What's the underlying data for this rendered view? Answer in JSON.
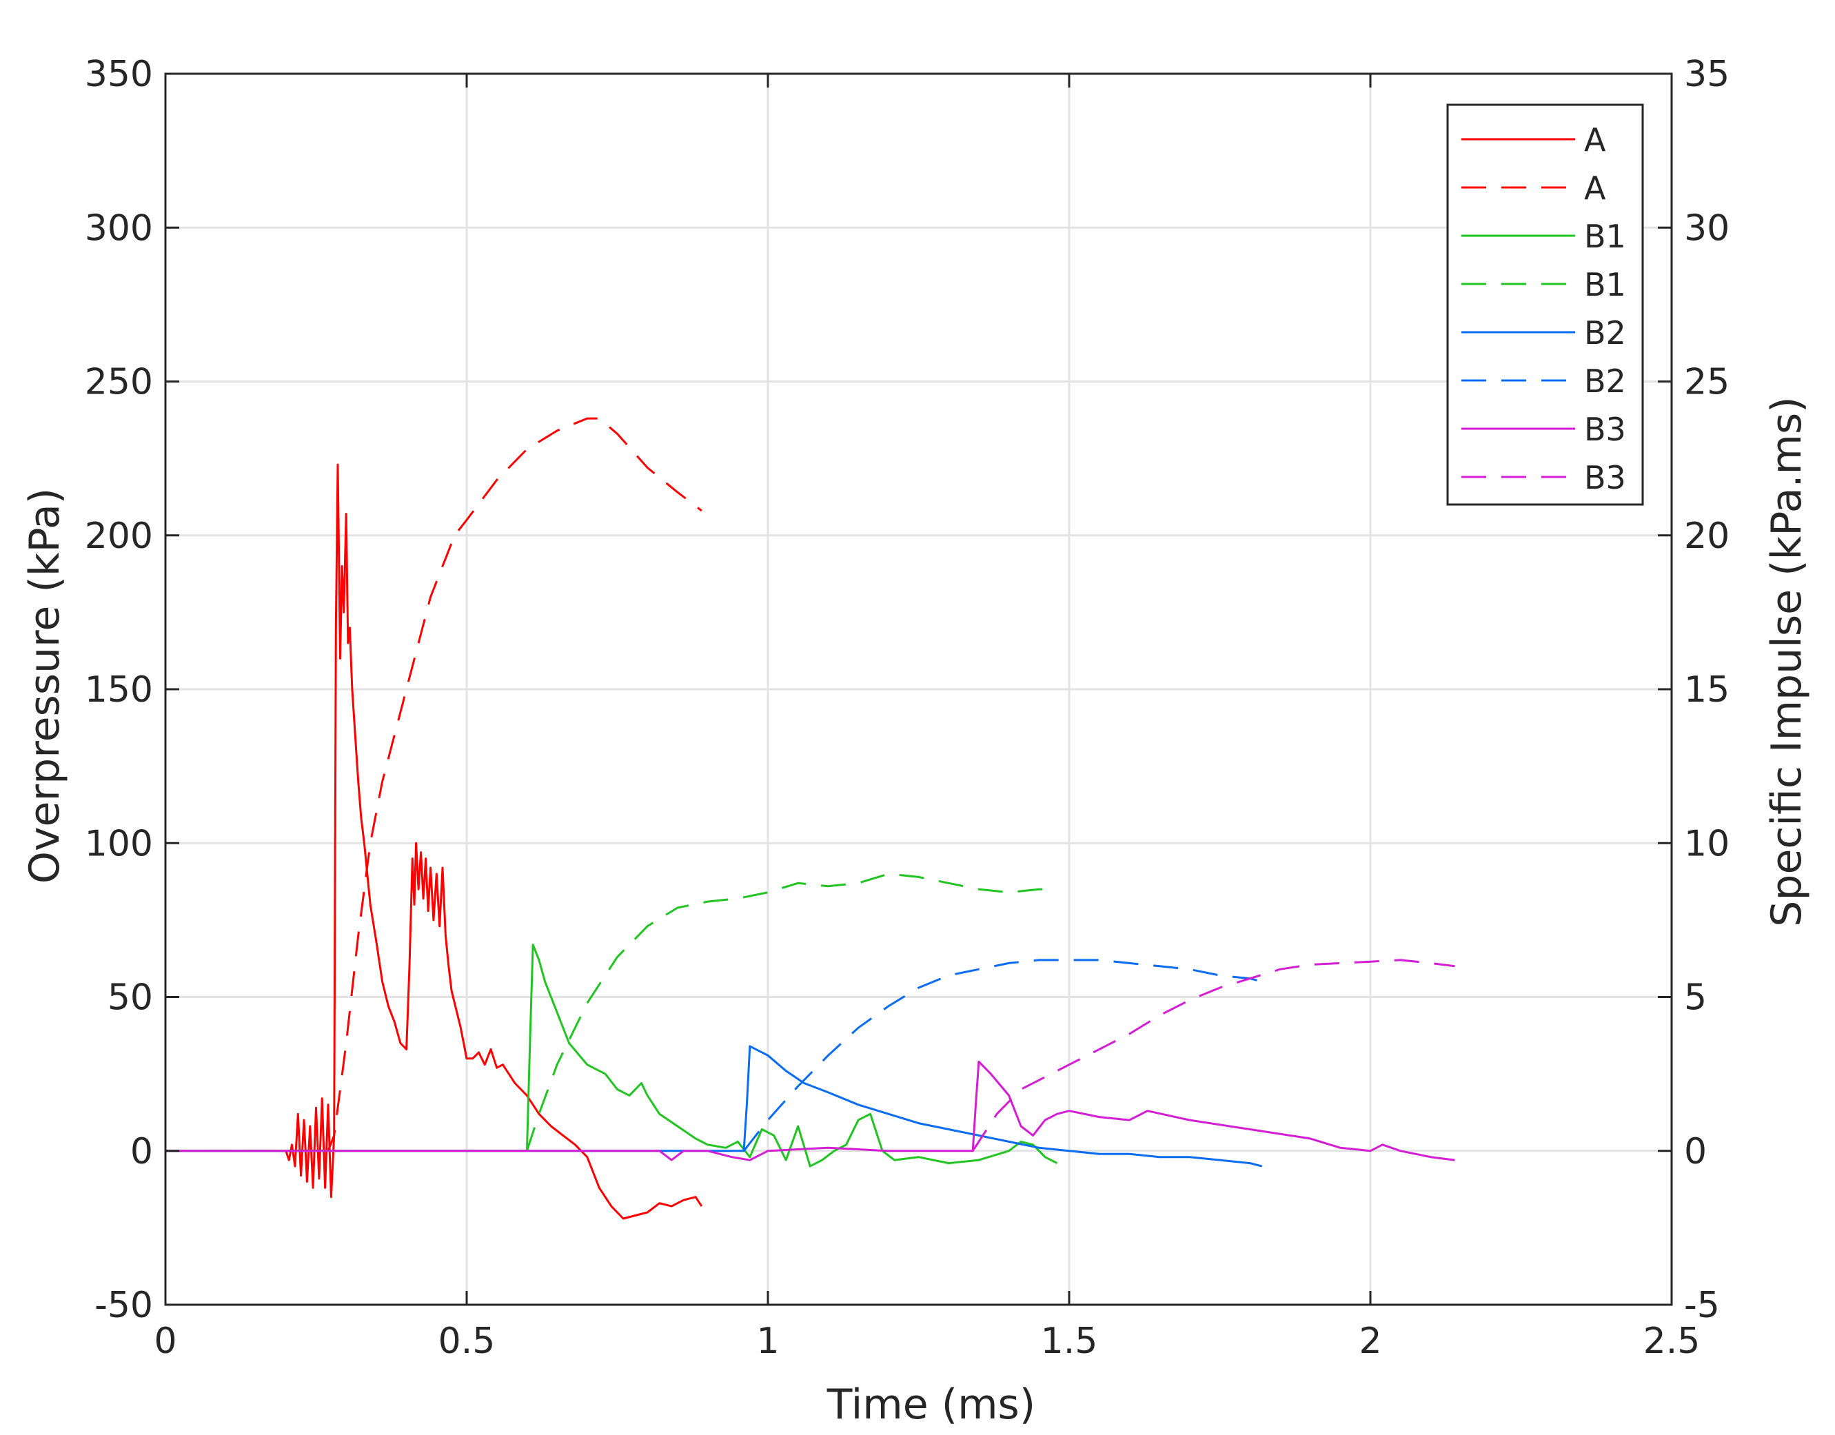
{
  "chart_data": {
    "type": "line",
    "title": "",
    "xlabel": "Time (ms)",
    "ylabel": "Overpressure (kPa)",
    "y2label": "Specific Impulse (kPa.ms)",
    "xlim": [
      0,
      2.5
    ],
    "ylim": [
      -50,
      350
    ],
    "y2lim": [
      -5,
      35
    ],
    "x_ticks": [
      "0",
      "0.5",
      "1",
      "1.5",
      "2",
      "2.5"
    ],
    "y_ticks": [
      "-50",
      "0",
      "50",
      "100",
      "150",
      "200",
      "250",
      "300",
      "350"
    ],
    "y2_ticks": [
      "-5",
      "0",
      "5",
      "10",
      "15",
      "20",
      "25",
      "30",
      "35"
    ],
    "grid": true,
    "legend_position": "top-right",
    "colors": {
      "A": "#ff0000",
      "B1": "#22c422",
      "B2": "#0a6cf0",
      "B3": "#d41ed4"
    },
    "series": [
      {
        "name": "A",
        "kind": "overpressure",
        "axis": "left",
        "style": "solid",
        "color": "#ff0000",
        "x": [
          0,
          0.2,
          0.205,
          0.21,
          0.215,
          0.22,
          0.225,
          0.23,
          0.235,
          0.24,
          0.245,
          0.25,
          0.255,
          0.26,
          0.265,
          0.27,
          0.275,
          0.28,
          0.283,
          0.286,
          0.29,
          0.293,
          0.296,
          0.3,
          0.303,
          0.306,
          0.31,
          0.315,
          0.32,
          0.325,
          0.33,
          0.335,
          0.34,
          0.35,
          0.36,
          0.37,
          0.38,
          0.39,
          0.4,
          0.405,
          0.41,
          0.413,
          0.416,
          0.42,
          0.424,
          0.428,
          0.432,
          0.436,
          0.44,
          0.445,
          0.45,
          0.455,
          0.46,
          0.465,
          0.47,
          0.475,
          0.48,
          0.49,
          0.5,
          0.51,
          0.52,
          0.53,
          0.54,
          0.55,
          0.56,
          0.57,
          0.58,
          0.6,
          0.62,
          0.64,
          0.66,
          0.68,
          0.7,
          0.72,
          0.74,
          0.76,
          0.78,
          0.8,
          0.82,
          0.84,
          0.86,
          0.88,
          0.89
        ],
        "y": [
          0,
          0,
          -3,
          2,
          -5,
          12,
          -8,
          10,
          -10,
          8,
          -12,
          14,
          -9,
          17,
          -12,
          15,
          -15,
          5,
          170,
          223,
          160,
          190,
          175,
          207,
          165,
          170,
          150,
          135,
          120,
          108,
          100,
          90,
          80,
          68,
          55,
          47,
          42,
          35,
          33,
          60,
          95,
          80,
          100,
          85,
          97,
          82,
          95,
          78,
          92,
          75,
          90,
          73,
          92,
          70,
          60,
          52,
          48,
          40,
          30,
          30,
          32,
          28,
          33,
          27,
          28,
          25,
          22,
          18,
          12,
          8,
          5,
          2,
          -2,
          -12,
          -18,
          -22,
          -21,
          -20,
          -17,
          -18,
          -16,
          -15,
          -18
        ]
      },
      {
        "name": "A",
        "kind": "impulse",
        "axis": "right",
        "style": "dashed",
        "color": "#ff0000",
        "x": [
          0,
          0.27,
          0.28,
          0.29,
          0.3,
          0.32,
          0.34,
          0.36,
          0.38,
          0.4,
          0.42,
          0.44,
          0.46,
          0.48,
          0.5,
          0.55,
          0.6,
          0.65,
          0.7,
          0.72,
          0.75,
          0.8,
          0.85,
          0.89
        ],
        "y": [
          0,
          0,
          0.5,
          2,
          3.5,
          7,
          10,
          12,
          13.5,
          15,
          16.5,
          18,
          19,
          20,
          20.5,
          21.8,
          22.8,
          23.4,
          23.8,
          23.8,
          23.3,
          22.2,
          21.4,
          20.8
        ]
      },
      {
        "name": "B1",
        "kind": "overpressure",
        "axis": "left",
        "style": "solid",
        "color": "#22c422",
        "x": [
          0,
          0.6,
          0.605,
          0.61,
          0.62,
          0.63,
          0.65,
          0.67,
          0.7,
          0.73,
          0.75,
          0.77,
          0.79,
          0.8,
          0.82,
          0.85,
          0.88,
          0.9,
          0.93,
          0.95,
          0.97,
          0.99,
          1.01,
          1.03,
          1.05,
          1.07,
          1.09,
          1.11,
          1.13,
          1.15,
          1.17,
          1.19,
          1.21,
          1.25,
          1.3,
          1.35,
          1.4,
          1.42,
          1.44,
          1.46,
          1.48
        ],
        "y": [
          0,
          0,
          35,
          67,
          62,
          55,
          45,
          35,
          28,
          25,
          20,
          18,
          22,
          18,
          12,
          8,
          4,
          2,
          1,
          3,
          -2,
          7,
          5,
          -3,
          8,
          -5,
          -3,
          0,
          2,
          10,
          12,
          0,
          -3,
          -2,
          -4,
          -3,
          0,
          3,
          2,
          -2,
          -4
        ]
      },
      {
        "name": "B1",
        "kind": "impulse",
        "axis": "right",
        "style": "dashed",
        "color": "#22c422",
        "x": [
          0.6,
          0.62,
          0.65,
          0.7,
          0.75,
          0.8,
          0.85,
          0.9,
          0.95,
          1.0,
          1.05,
          1.1,
          1.15,
          1.2,
          1.25,
          1.3,
          1.35,
          1.4,
          1.45,
          1.48
        ],
        "y": [
          0,
          1.2,
          2.8,
          4.8,
          6.3,
          7.3,
          7.9,
          8.1,
          8.2,
          8.4,
          8.7,
          8.6,
          8.7,
          9.0,
          8.9,
          8.7,
          8.5,
          8.4,
          8.5,
          8.5
        ]
      },
      {
        "name": "B2",
        "kind": "overpressure",
        "axis": "left",
        "style": "solid",
        "color": "#0a6cf0",
        "x": [
          0,
          0.96,
          0.965,
          0.97,
          0.98,
          1.0,
          1.03,
          1.06,
          1.1,
          1.15,
          1.2,
          1.25,
          1.3,
          1.35,
          1.4,
          1.45,
          1.5,
          1.55,
          1.6,
          1.65,
          1.7,
          1.75,
          1.8,
          1.82
        ],
        "y": [
          0,
          0,
          15,
          34,
          33,
          31,
          26,
          22,
          19,
          15,
          12,
          9,
          7,
          5,
          3,
          1,
          0,
          -1,
          -1,
          -2,
          -2,
          -3,
          -4,
          -5
        ]
      },
      {
        "name": "B2",
        "kind": "impulse",
        "axis": "right",
        "style": "dashed",
        "color": "#0a6cf0",
        "x": [
          0.96,
          1.0,
          1.05,
          1.1,
          1.15,
          1.2,
          1.25,
          1.3,
          1.35,
          1.4,
          1.45,
          1.5,
          1.55,
          1.6,
          1.65,
          1.7,
          1.75,
          1.8,
          1.82
        ],
        "y": [
          0,
          1.0,
          2.1,
          3.1,
          4.0,
          4.7,
          5.3,
          5.7,
          5.9,
          6.1,
          6.2,
          6.2,
          6.2,
          6.1,
          6.0,
          5.9,
          5.7,
          5.6,
          5.5
        ]
      },
      {
        "name": "B3",
        "kind": "overpressure",
        "axis": "left",
        "style": "solid",
        "color": "#d41ed4",
        "x": [
          0,
          0.82,
          0.84,
          0.86,
          0.9,
          0.94,
          0.97,
          1.0,
          1.1,
          1.2,
          1.3,
          1.34,
          1.345,
          1.35,
          1.37,
          1.4,
          1.42,
          1.44,
          1.46,
          1.48,
          1.5,
          1.55,
          1.6,
          1.63,
          1.7,
          1.8,
          1.9,
          1.95,
          2.0,
          2.02,
          2.05,
          2.1,
          2.14
        ],
        "y": [
          0,
          0,
          -3,
          0,
          0,
          -2,
          -3,
          0,
          1,
          0,
          0,
          0,
          15,
          29,
          25,
          18,
          8,
          5,
          10,
          12,
          13,
          11,
          10,
          13,
          10,
          7,
          4,
          1,
          0,
          2,
          0,
          -2,
          -3
        ]
      },
      {
        "name": "B3",
        "kind": "impulse",
        "axis": "right",
        "style": "dashed",
        "color": "#d41ed4",
        "x": [
          1.34,
          1.38,
          1.42,
          1.5,
          1.55,
          1.6,
          1.65,
          1.7,
          1.75,
          1.8,
          1.85,
          1.9,
          1.95,
          2.0,
          2.05,
          2.1,
          2.14
        ],
        "y": [
          0,
          1.2,
          2.0,
          2.8,
          3.3,
          3.8,
          4.4,
          4.9,
          5.3,
          5.6,
          5.9,
          6.05,
          6.1,
          6.15,
          6.2,
          6.1,
          6.0
        ]
      }
    ]
  }
}
